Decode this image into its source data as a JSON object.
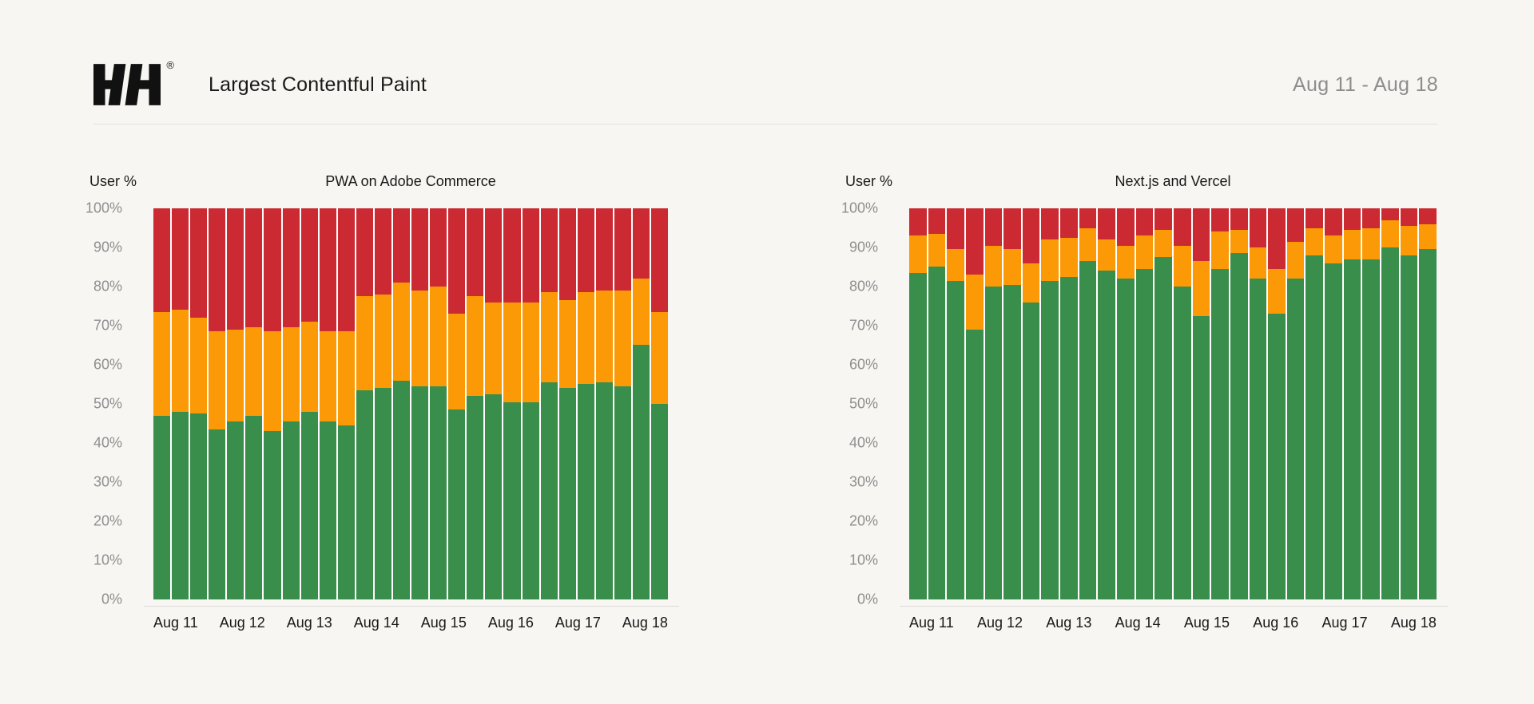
{
  "colors": {
    "background": "#f7f6f3",
    "good": "#3a8e4c",
    "needs_improvement": "#fb9a06",
    "poor": "#cb2a32",
    "muted_text": "#8d8d8d",
    "divider": "#e4e2df"
  },
  "header": {
    "logo_text": "HH",
    "registered_mark": "®",
    "title": "Largest Contentful Paint",
    "date_range": "Aug 11 - Aug 18"
  },
  "chart_data": [
    {
      "type": "bar",
      "subtype": "stacked-100-percent",
      "title": "PWA on Adobe Commerce",
      "ylabel": "User %",
      "ylim": [
        0,
        100
      ],
      "y_ticks": [
        "100%",
        "90%",
        "80%",
        "70%",
        "60%",
        "50%",
        "40%",
        "30%",
        "20%",
        "10%",
        "0%"
      ],
      "x_labels": [
        "Aug 11",
        "Aug 12",
        "Aug 13",
        "Aug 14",
        "Aug 15",
        "Aug 16",
        "Aug 17",
        "Aug 18"
      ],
      "series": [
        {
          "name": "good",
          "color": "#3a8e4c",
          "values": [
            47,
            48,
            47.5,
            43.5,
            45.5,
            47,
            43,
            45.5,
            48,
            45.5,
            44.5,
            53.5,
            54,
            56,
            54.5,
            54.5,
            48.5,
            52,
            52.5,
            50.5,
            50.5,
            55.5,
            54,
            55,
            55.5,
            54.5,
            65,
            50
          ]
        },
        {
          "name": "needs_improvement",
          "color": "#fb9a06",
          "values": [
            26.5,
            26,
            24.5,
            25,
            23.5,
            22.5,
            25.5,
            24,
            23,
            23,
            24,
            24,
            24,
            25,
            24.5,
            25.5,
            24.5,
            25.5,
            23.5,
            25.5,
            25.5,
            23,
            22.5,
            23.5,
            23.5,
            24.5,
            17,
            23.5
          ]
        },
        {
          "name": "poor",
          "color": "#cb2a32",
          "values": [
            26.5,
            26,
            28,
            31.5,
            31,
            30.5,
            31.5,
            30.5,
            29,
            31.5,
            31.5,
            22.5,
            22,
            19,
            21,
            20,
            27,
            22.5,
            24,
            24,
            24,
            21.5,
            23.5,
            21.5,
            21,
            21,
            18,
            26.5
          ]
        }
      ]
    },
    {
      "type": "bar",
      "subtype": "stacked-100-percent",
      "title": "Next.js and Vercel",
      "ylabel": "User %",
      "ylim": [
        0,
        100
      ],
      "y_ticks": [
        "100%",
        "90%",
        "80%",
        "70%",
        "60%",
        "50%",
        "40%",
        "30%",
        "20%",
        "10%",
        "0%"
      ],
      "x_labels": [
        "Aug 11",
        "Aug 12",
        "Aug 13",
        "Aug 14",
        "Aug 15",
        "Aug 16",
        "Aug 17",
        "Aug 18"
      ],
      "series": [
        {
          "name": "good",
          "color": "#3a8e4c",
          "values": [
            83.5,
            85,
            81.5,
            69,
            80,
            80.5,
            76,
            81.5,
            82.5,
            86.5,
            84,
            82,
            84.5,
            87.5,
            80,
            72.5,
            84.5,
            88.5,
            82,
            73,
            82,
            88,
            86,
            87,
            87,
            90,
            88,
            89.5
          ]
        },
        {
          "name": "needs_improvement",
          "color": "#fb9a06",
          "values": [
            9.5,
            8.5,
            8,
            14,
            10.5,
            9,
            10,
            10.5,
            10,
            8.5,
            8,
            8.5,
            8.5,
            7,
            10.5,
            14,
            9.5,
            6,
            8,
            11.5,
            9.5,
            7,
            7,
            7.5,
            8,
            7,
            7.5,
            6.5
          ]
        },
        {
          "name": "poor",
          "color": "#cb2a32",
          "values": [
            7,
            6.5,
            10.5,
            17,
            9.5,
            10.5,
            14,
            8,
            7.5,
            5,
            8,
            9.5,
            7,
            5.5,
            9.5,
            13.5,
            6,
            5.5,
            10,
            15.5,
            8.5,
            5,
            7,
            5.5,
            5,
            3,
            4.5,
            4
          ]
        }
      ]
    }
  ]
}
